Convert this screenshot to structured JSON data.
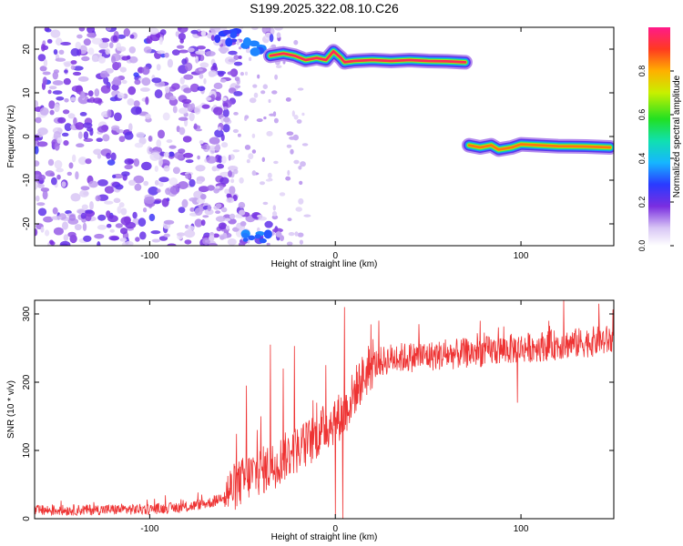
{
  "figure": {
    "title": "S199.2025.322.08.10.C26"
  },
  "chart_data": [
    {
      "type": "heatmap",
      "panel": "spectrogram",
      "xlabel": "Height of straight line (km)",
      "ylabel": "Frequency (Hz)",
      "xlim": [
        -162,
        150
      ],
      "ylim": [
        -25,
        25
      ],
      "xticks": [
        -100,
        0,
        100
      ],
      "yticks": [
        -20,
        -10,
        0,
        10,
        20
      ],
      "colorbar": {
        "label": "Normalized spectral amplitude",
        "range": [
          0,
          1
        ],
        "ticks": [
          "0.0",
          "0.2",
          "0.4",
          "0.6",
          "0.8"
        ]
      },
      "noise_region": {
        "x_from": -162,
        "x_to": -40,
        "level": 0.1
      },
      "traces": [
        {
          "name": "upper-tone",
          "points": [
            [
              -35,
              18.5
            ],
            [
              -28,
              19
            ],
            [
              -22,
              18.5
            ],
            [
              -16,
              17.5
            ],
            [
              -10,
              18
            ],
            [
              -5,
              17.5
            ],
            [
              -1,
              19.5
            ],
            [
              3,
              18
            ],
            [
              5,
              17
            ],
            [
              10,
              17.3
            ],
            [
              20,
              17.5
            ],
            [
              30,
              17.3
            ],
            [
              40,
              17.5
            ],
            [
              50,
              17.3
            ],
            [
              60,
              17.2
            ],
            [
              70,
              17
            ]
          ],
          "peak": 0.95
        },
        {
          "name": "lower-tone",
          "points": [
            [
              72,
              -2
            ],
            [
              78,
              -2.5
            ],
            [
              84,
              -2
            ],
            [
              88,
              -3
            ],
            [
              95,
              -2.5
            ],
            [
              100,
              -1.8
            ],
            [
              110,
              -2
            ],
            [
              120,
              -2.2
            ],
            [
              135,
              -2.3
            ],
            [
              148,
              -2.5
            ]
          ],
          "peak": 0.85
        }
      ],
      "edge_blobs": [
        {
          "x": -45,
          "f": 20.5,
          "a": 0.3
        },
        {
          "x": -42,
          "f": -23,
          "a": 0.3
        },
        {
          "x": -60,
          "f": 23,
          "a": 0.25
        }
      ]
    },
    {
      "type": "line",
      "panel": "snr",
      "xlabel": "Height of straight line (km)",
      "ylabel": "SNR (10 * v/v)",
      "xlim": [
        -162,
        150
      ],
      "ylim": [
        0,
        320
      ],
      "xticks": [
        -100,
        0,
        100
      ],
      "yticks": [
        0,
        100,
        200,
        300
      ],
      "series": [
        {
          "name": "SNR",
          "color": "#ee3333",
          "trend": [
            [
              -162,
              12
            ],
            [
              -100,
              14
            ],
            [
              -80,
              17
            ],
            [
              -65,
              25
            ],
            [
              -55,
              45
            ],
            [
              -45,
              65
            ],
            [
              -35,
              75
            ],
            [
              -25,
              95
            ],
            [
              -15,
              110
            ],
            [
              -5,
              135
            ],
            [
              5,
              155
            ],
            [
              12,
              195
            ],
            [
              20,
              225
            ],
            [
              30,
              235
            ],
            [
              60,
              240
            ],
            [
              100,
              250
            ],
            [
              150,
              262
            ]
          ],
          "spikes": [
            [
              -48,
              195
            ],
            [
              -42,
              130
            ],
            [
              -40,
              150
            ],
            [
              -35,
              255
            ],
            [
              -28,
              220
            ],
            [
              -22,
              253
            ],
            [
              -10,
              170
            ],
            [
              -5,
              225
            ],
            [
              2,
              130
            ],
            [
              4,
              3
            ],
            [
              5,
              310
            ],
            [
              45,
              285
            ],
            [
              78,
              290
            ],
            [
              115,
              290
            ],
            [
              123,
              320
            ],
            [
              142,
              315
            ]
          ],
          "dips": [
            [
              0,
              5
            ],
            [
              4,
              0
            ],
            [
              98,
              170
            ]
          ]
        }
      ]
    }
  ]
}
